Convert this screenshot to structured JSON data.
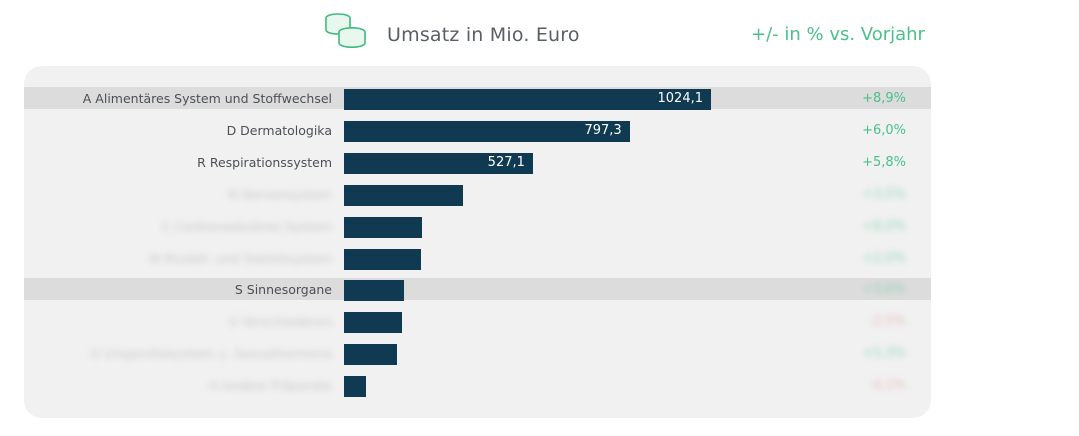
{
  "header": {
    "title": "Umsatz in Mio. Euro",
    "change_title": "+/- in % vs. Vorjahr",
    "icon": "coins-icon"
  },
  "colors": {
    "bar": "#0f3a52",
    "positive": "#49c189",
    "negative": "#e08a8a",
    "highlight_row": "#dcdcdc",
    "panel": "#f1f1f1"
  },
  "chart_data": {
    "type": "bar",
    "orientation": "horizontal",
    "categories": [
      "A Alimentäres System und Stoffwechsel",
      "D Dermatologika",
      "R Respirationssystem",
      "",
      "",
      "",
      "S Sinnesorgane",
      "",
      "",
      ""
    ],
    "values": [
      1024.1,
      797.3,
      527.1,
      332,
      218,
      215,
      168,
      163,
      149,
      62
    ],
    "value_labels": [
      "1024,1",
      "797,3",
      "527,1",
      "",
      "",
      "",
      "",
      "",
      "",
      ""
    ],
    "changes": [
      "+8,9%",
      "+6,0%",
      "+5,8%",
      "",
      "",
      "",
      "",
      "",
      "",
      ""
    ],
    "change_signs": [
      "pos",
      "pos",
      "pos",
      "pos",
      "pos",
      "pos",
      "pos",
      "neg",
      "pos",
      "neg"
    ],
    "blurred": [
      false,
      false,
      false,
      true,
      true,
      true,
      false,
      true,
      true,
      true
    ],
    "highlighted": [
      true,
      false,
      false,
      false,
      false,
      false,
      true,
      false,
      false,
      false
    ],
    "xlim": [
      0,
      1024.1
    ]
  }
}
